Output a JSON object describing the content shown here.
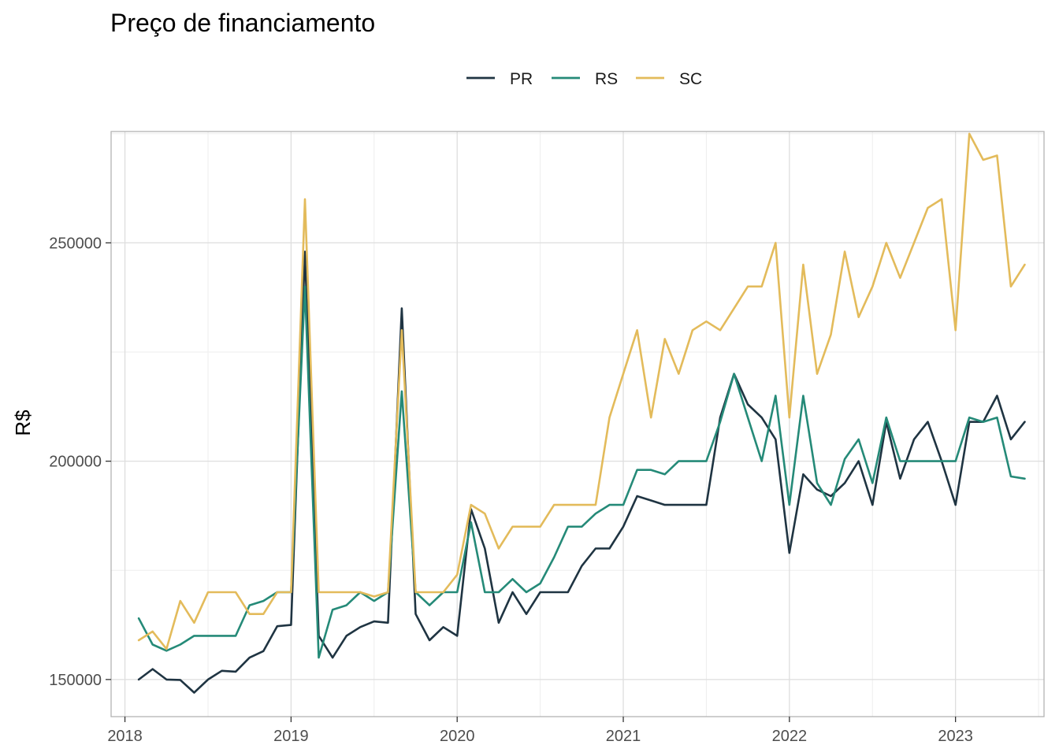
{
  "chart_data": {
    "type": "line",
    "title": "Preço de financiamento",
    "xlabel": "",
    "ylabel": "R$",
    "xlim": [
      "2017-12-01",
      "2023-07-13"
    ],
    "ylim": [
      141500,
      275500
    ],
    "x_ticks": [
      "2018",
      "2019",
      "2020",
      "2021",
      "2022",
      "2023"
    ],
    "y_ticks": [
      150000,
      200000,
      250000
    ],
    "grid": true,
    "legend_position": "top",
    "x": [
      "2018-02",
      "2018-03",
      "2018-04",
      "2018-05",
      "2018-06",
      "2018-07",
      "2018-08",
      "2018-09",
      "2018-10",
      "2018-11",
      "2018-12",
      "2019-01",
      "2019-02",
      "2019-03",
      "2019-04",
      "2019-05",
      "2019-06",
      "2019-07",
      "2019-08",
      "2019-09",
      "2019-10",
      "2019-11",
      "2019-12",
      "2020-01",
      "2020-02",
      "2020-03",
      "2020-04",
      "2020-05",
      "2020-06",
      "2020-07",
      "2020-08",
      "2020-09",
      "2020-10",
      "2020-11",
      "2020-12",
      "2021-01",
      "2021-02",
      "2021-03",
      "2021-04",
      "2021-05",
      "2021-06",
      "2021-07",
      "2021-08",
      "2021-09",
      "2021-10",
      "2021-11",
      "2021-12",
      "2022-01",
      "2022-02",
      "2022-03",
      "2022-04",
      "2022-05",
      "2022-06",
      "2022-07",
      "2022-08",
      "2022-09",
      "2022-10",
      "2022-11",
      "2022-12",
      "2023-01",
      "2023-02",
      "2023-03",
      "2023-04",
      "2023-05",
      "2023-06"
    ],
    "series": [
      {
        "name": "PR",
        "color": "#1f3442",
        "values": [
          150000,
          152400,
          150000,
          149900,
          147000,
          150000,
          152000,
          151800,
          155000,
          156500,
          162200,
          162500,
          248000,
          160000,
          155000,
          160000,
          162000,
          163300,
          163000,
          235000,
          165000,
          159000,
          162000,
          160000,
          189000,
          180000,
          163000,
          170000,
          165000,
          170000,
          170000,
          170000,
          176000,
          180000,
          180000,
          185000,
          192000,
          191000,
          190000,
          190000,
          190000,
          190000,
          210000,
          220000,
          213000,
          210000,
          205000,
          179000,
          197000,
          193500,
          192000,
          195000,
          200000,
          190000,
          209000,
          196000,
          205000,
          209000,
          200000,
          190000,
          209000,
          209000,
          215000,
          205000,
          209000
        ]
      },
      {
        "name": "RS",
        "color": "#258a78",
        "values": [
          164000,
          158000,
          156600,
          158000,
          160000,
          160000,
          160000,
          160000,
          167000,
          168000,
          170000,
          170000,
          240000,
          155000,
          166000,
          167000,
          170000,
          168000,
          170000,
          216000,
          170000,
          167000,
          170000,
          170000,
          186000,
          170000,
          170000,
          173000,
          170000,
          172000,
          178000,
          185000,
          185000,
          188000,
          190000,
          190000,
          198000,
          198000,
          197000,
          200000,
          200000,
          200000,
          209000,
          220000,
          210000,
          200000,
          215000,
          190000,
          215000,
          195000,
          190000,
          200500,
          205000,
          195000,
          210000,
          200000,
          200000,
          200000,
          200000,
          200000,
          210000,
          209000,
          210000,
          196500,
          196000
        ]
      },
      {
        "name": "SC",
        "color": "#e3bb5b",
        "values": [
          159000,
          161000,
          157000,
          168000,
          163000,
          170000,
          170000,
          170000,
          165000,
          165000,
          170000,
          170000,
          260000,
          170000,
          170000,
          170000,
          170000,
          169000,
          170000,
          230000,
          170000,
          170000,
          170000,
          174000,
          190000,
          188000,
          180000,
          185000,
          185000,
          185000,
          190000,
          190000,
          190000,
          190000,
          210000,
          220000,
          230000,
          210000,
          228000,
          220000,
          230000,
          232000,
          230000,
          235000,
          240000,
          240000,
          250000,
          210000,
          245000,
          220000,
          229000,
          248000,
          233000,
          240000,
          250000,
          242000,
          250000,
          258000,
          260000,
          230000,
          275000,
          269000,
          270000,
          240000,
          245000
        ]
      }
    ]
  }
}
